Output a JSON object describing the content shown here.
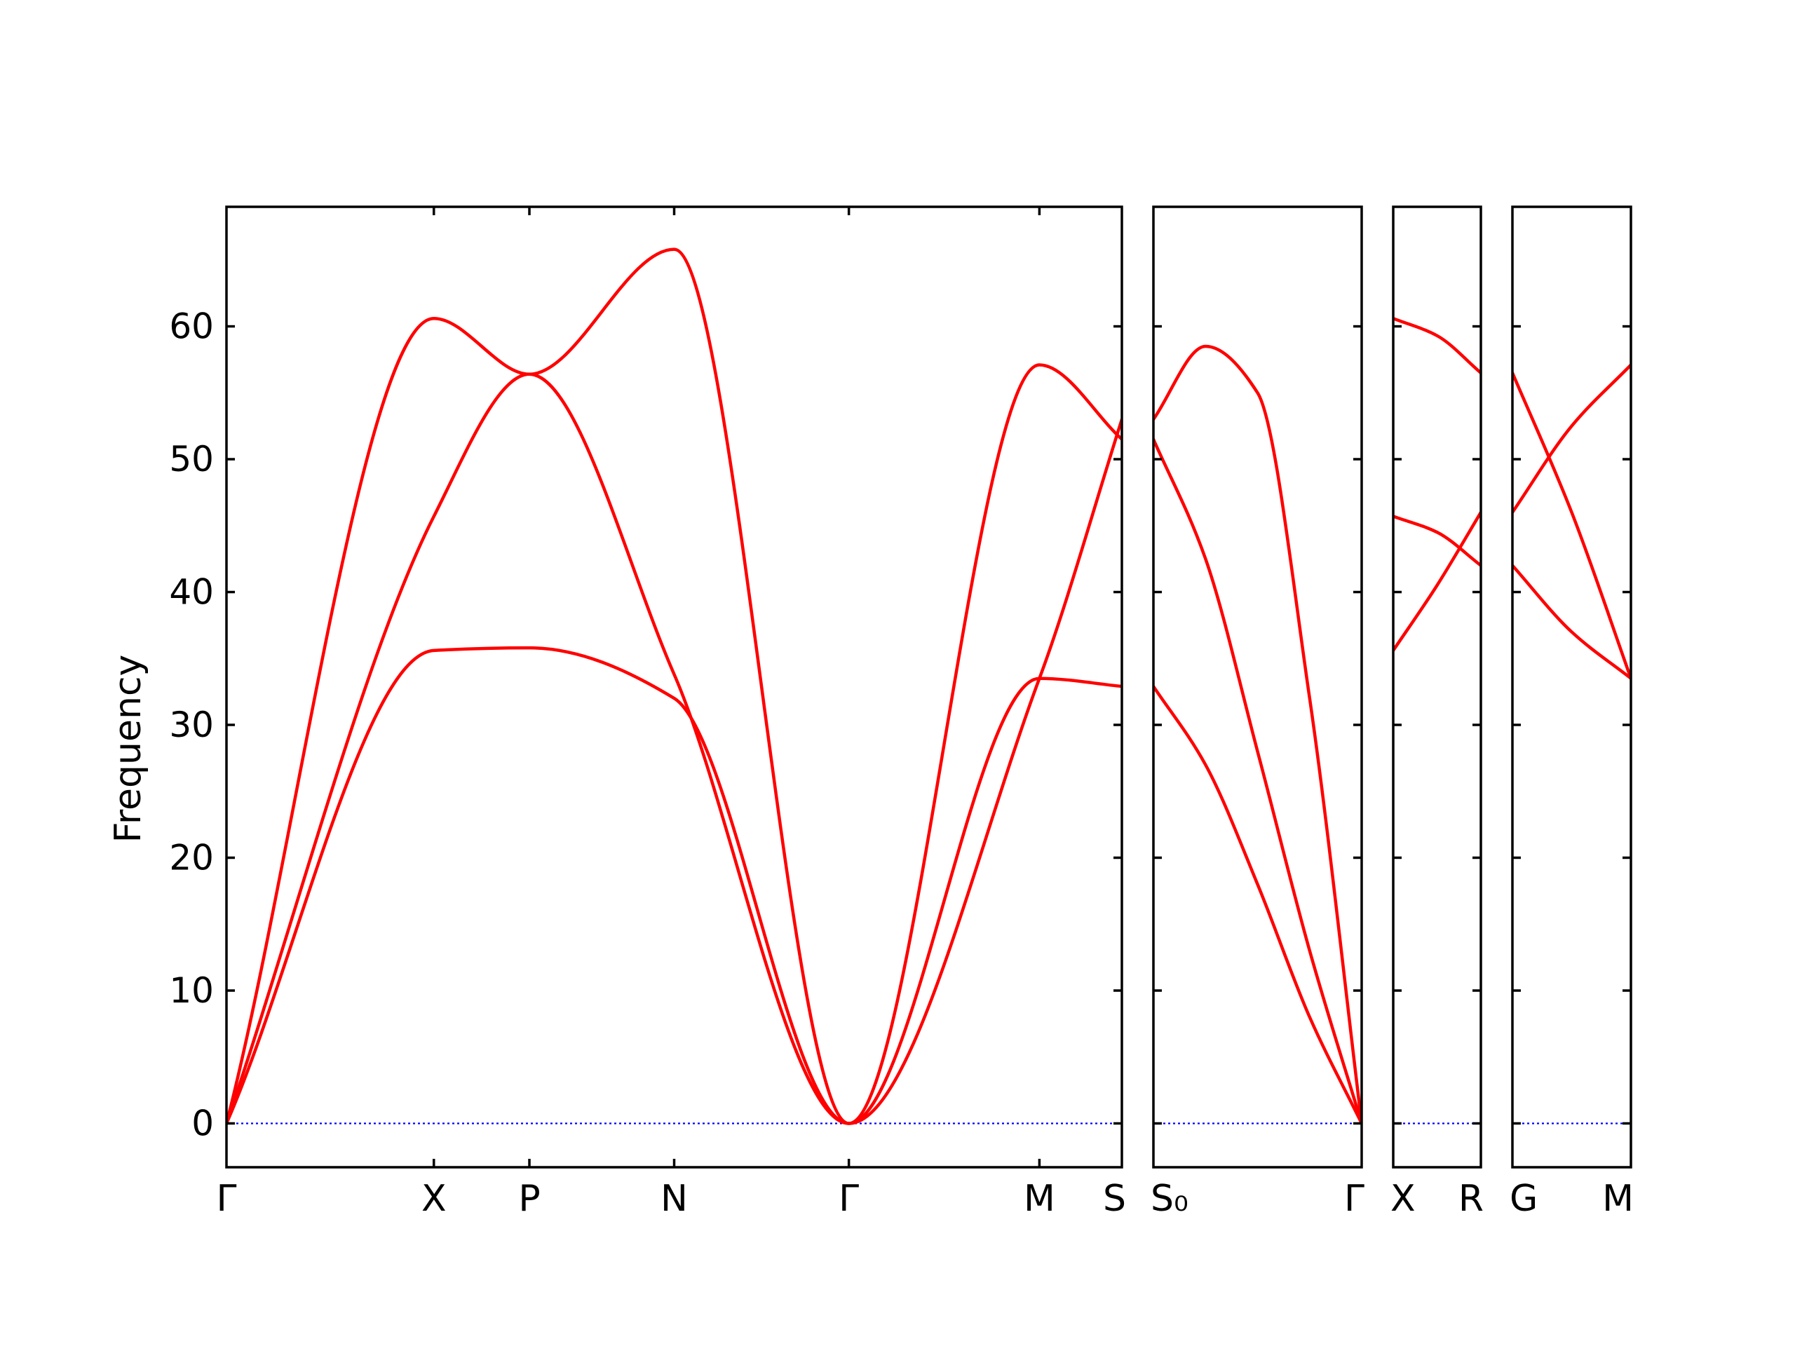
{
  "chart_data": {
    "type": "line",
    "title": "",
    "xlabel": "",
    "ylabel": "Frequency",
    "ylim": [
      -3.3,
      69
    ],
    "yticks": [
      0,
      10,
      20,
      30,
      40,
      50,
      60
    ],
    "grid": false,
    "legend": "none",
    "colors": {
      "bands": "#ff0000",
      "zero_line": "#0000ff",
      "axes": "#000000"
    },
    "panels": [
      {
        "path": [
          "Γ",
          "X",
          "P",
          "N",
          "Γ",
          "M",
          "S"
        ],
        "x": [
          0,
          0.2316,
          0.3383,
          0.5,
          0.6951,
          0.9079,
          1.0
        ],
        "bands": [
          {
            "values": [
              0,
              35.6,
              35.8,
              32.0,
              0,
              33.5,
              32.9
            ]
          },
          {
            "values": [
              0,
              45.7,
              56.4,
              33.8,
              0,
              33.5,
              53.0
            ]
          },
          {
            "values": [
              0,
              60.6,
              56.4,
              65.8,
              0,
              57.1,
              51.5
            ]
          }
        ]
      },
      {
        "path": [
          "S₀",
          "Γ"
        ],
        "x": [
          0,
          0.25,
          0.5,
          0.75,
          1.0
        ],
        "bands": [
          {
            "values": [
              32.9,
              27.0,
              18.0,
              8.0,
              0
            ]
          },
          {
            "values": [
              51.5,
              42.5,
              28.0,
              13.0,
              0
            ]
          },
          {
            "values": [
              53.0,
              58.5,
              55.0,
              32.0,
              0
            ]
          }
        ]
      },
      {
        "path": [
          "X",
          "R"
        ],
        "x": [
          0,
          0.5,
          1.0
        ],
        "bands": [
          {
            "values": [
              35.6,
              40.5,
              46.0
            ]
          },
          {
            "values": [
              45.7,
              44.5,
              42.0
            ]
          },
          {
            "values": [
              60.6,
              59.3,
              56.5
            ]
          }
        ]
      },
      {
        "path": [
          "G",
          "M"
        ],
        "x": [
          0,
          0.5,
          1.0
        ],
        "bands": [
          {
            "values": [
              42.0,
              37.0,
              33.5
            ]
          },
          {
            "values": [
              46.0,
              52.5,
              57.1
            ]
          },
          {
            "values": [
              56.5,
              46.0,
              33.5
            ]
          }
        ]
      }
    ]
  }
}
